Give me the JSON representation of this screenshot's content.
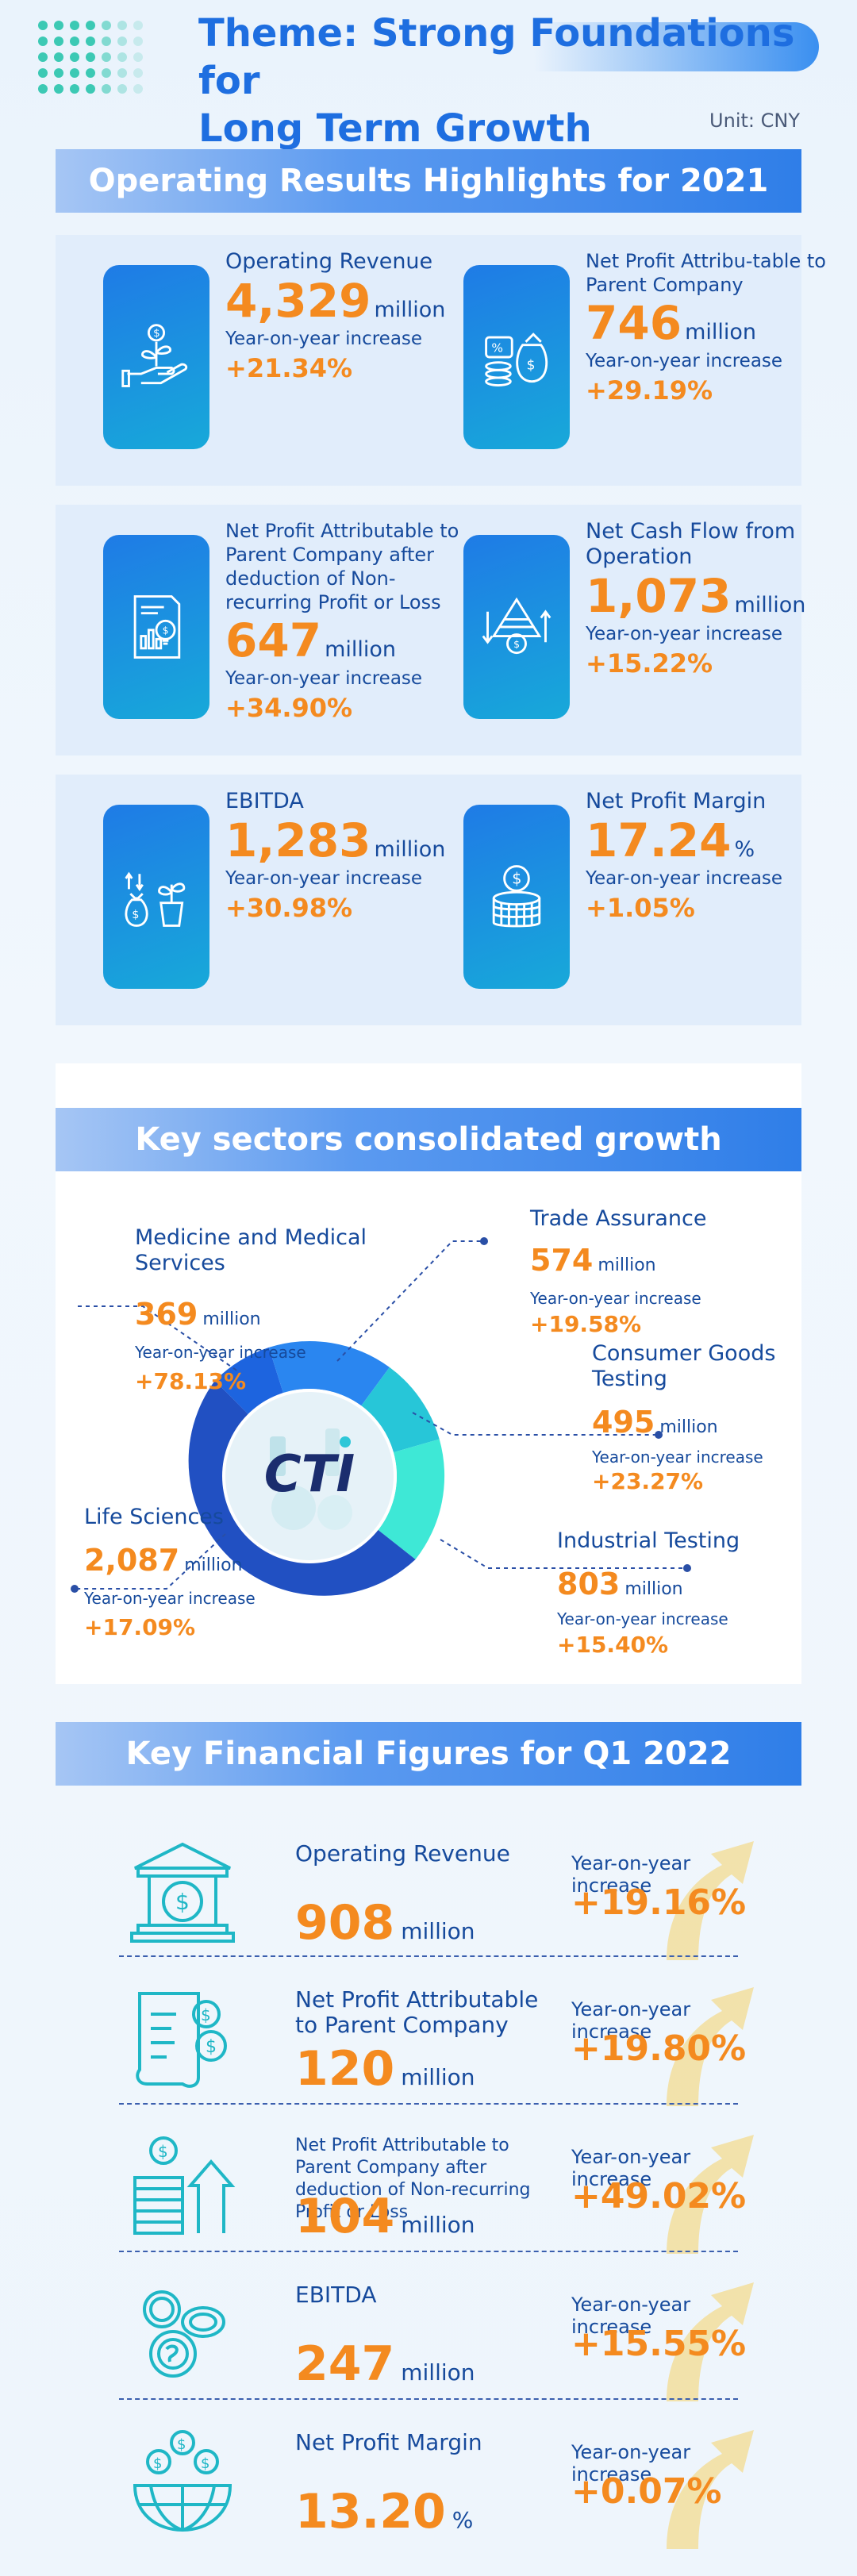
{
  "header": {
    "title_line1": "Theme: Strong Foundations for",
    "title_line2": "Long Term Growth",
    "unit": "Unit: CNY"
  },
  "highlights": {
    "title": "Operating Results Highlights for 2021",
    "cards": [
      {
        "icon": "hand-plant-icon",
        "label": "Operating Revenue",
        "value": "4,329",
        "unit": "million",
        "yoy_label": "Year-on-year increase",
        "yoy": "+21.34%"
      },
      {
        "icon": "money-bag-coins-icon",
        "label": "Net Profit Attribu-table to Parent Company",
        "value": "746",
        "unit": "million",
        "yoy_label": "Year-on-year increase",
        "yoy": "+29.19%"
      },
      {
        "icon": "report-bulb-icon",
        "label": "Net Profit Attributable to Parent Company after deduction of Non-recurring Profit or Loss",
        "value": "647",
        "unit": "million",
        "yoy_label": "Year-on-year increase",
        "yoy": "+34.90%"
      },
      {
        "icon": "cash-flow-icon",
        "label": "Net Cash Flow from Operation",
        "value": "1,073",
        "unit": "million",
        "yoy_label": "Year-on-year increase",
        "yoy": "+15.22%"
      },
      {
        "icon": "money-bag-plant-icon",
        "label": "EBITDA",
        "value": "1,283",
        "unit": "million",
        "yoy_label": "Year-on-year increase",
        "yoy": "+30.98%"
      },
      {
        "icon": "coin-stack-icon",
        "label": "Net Profit Margin",
        "value": "17.24",
        "unit": "%",
        "yoy_label": "Year-on-year increase",
        "yoy": "+1.05%"
      }
    ]
  },
  "sectors": {
    "title": "Key sectors consolidated growth",
    "logo_text": "CTI",
    "items": [
      {
        "label": "Medicine and Medical Services",
        "value": "369",
        "unit": "million",
        "yoy_label": "Year-on-year increase",
        "yoy": "+78.13%"
      },
      {
        "label": "Trade Assurance",
        "value": "574",
        "unit": "million",
        "yoy_label": "Year-on-year increase",
        "yoy": "+19.58%"
      },
      {
        "label": "Consumer Goods Testing",
        "value": "495",
        "unit": "million",
        "yoy_label": "Year-on-year increase",
        "yoy": "+23.27%"
      },
      {
        "label": "Life Sciences",
        "value": "2,087",
        "unit": "million",
        "yoy_label": "Year-on-year increase",
        "yoy": "+17.09%"
      },
      {
        "label": "Industrial Testing",
        "value": "803",
        "unit": "million",
        "yoy_label": "Year-on-year increase",
        "yoy": "+15.40%"
      }
    ],
    "colors": {
      "medicine": "#1d64df",
      "trade": "#2a86f0",
      "consumer": "#27c6d8",
      "industrial": "#3ee8d6",
      "life": "#2150c2"
    }
  },
  "q1": {
    "title": "Key Financial Figures for Q1 2022",
    "rows": [
      {
        "icon": "bank-dollar-icon",
        "label": "Operating Revenue",
        "value": "908",
        "unit": "million",
        "yoy_label": "Year-on-year increase",
        "yoy": "+19.16%"
      },
      {
        "icon": "document-coins-icon",
        "label": "Net Profit Attributable to Parent Company",
        "value": "120",
        "unit": "million",
        "yoy_label": "Year-on-year increase",
        "yoy": "+19.80%"
      },
      {
        "icon": "coin-bricks-arrow-icon",
        "label": "Net Profit Attributable to Parent Company after deduction of Non-recurring Profit or Loss",
        "value": "104",
        "unit": "million",
        "yoy_label": "Year-on-year increase",
        "yoy": "+49.02%"
      },
      {
        "icon": "coins-pile-icon",
        "label": "EBITDA",
        "value": "247",
        "unit": "million",
        "yoy_label": "Year-on-year increase",
        "yoy": "+15.55%"
      },
      {
        "icon": "globe-coins-icon",
        "label": "Net Profit Margin",
        "value": "13.20",
        "unit": "%",
        "yoy_label": "Year-on-year increase",
        "yoy": "+0.07%"
      }
    ]
  }
}
